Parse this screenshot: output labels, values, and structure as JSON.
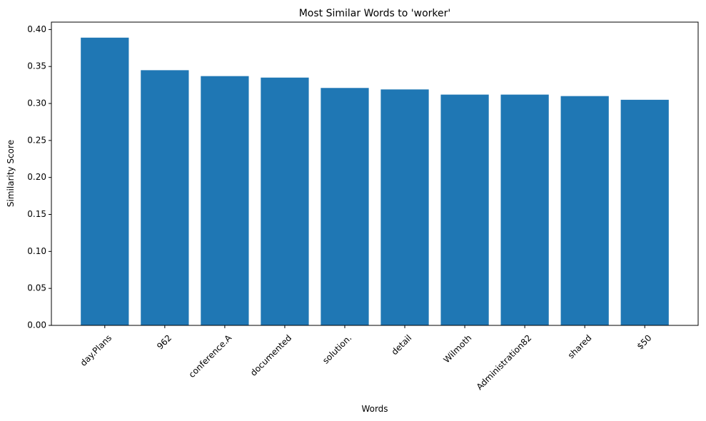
{
  "chart_data": {
    "type": "bar",
    "title": "Most Similar Words to 'worker'",
    "xlabel": "Words",
    "ylabel": "Similarity Score",
    "categories": [
      "day.Plans",
      "962",
      "conference.A",
      "documented",
      "solution.",
      "detail",
      "Wilmoth",
      "Administration82",
      "shared",
      "$50"
    ],
    "values": [
      0.389,
      0.345,
      0.337,
      0.335,
      0.321,
      0.319,
      0.312,
      0.312,
      0.31,
      0.305
    ],
    "ylim": [
      0,
      0.41
    ],
    "yticks": [
      "0.00",
      "0.05",
      "0.10",
      "0.15",
      "0.20",
      "0.25",
      "0.30",
      "0.35",
      "0.40"
    ],
    "bar_color": "#1f77b4",
    "grid": false,
    "legend": "none"
  }
}
